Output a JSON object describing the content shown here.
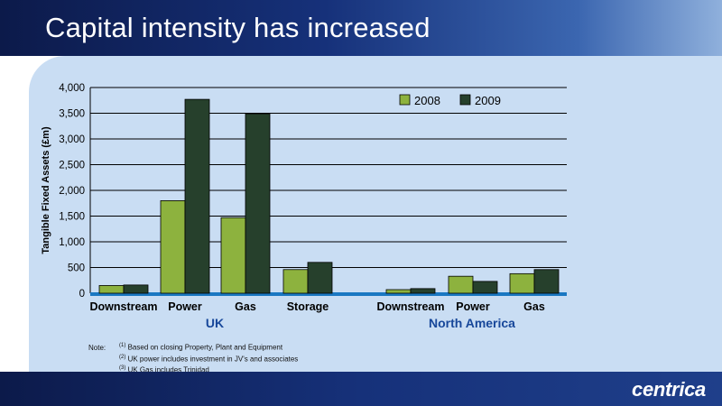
{
  "title": "Capital intensity has increased",
  "logo": "centrica",
  "notes": {
    "label": "Note:",
    "items": [
      {
        "mark": "(1)",
        "text": "Based on closing Property, Plant and Equipment"
      },
      {
        "mark": "(2)",
        "text": "UK power includes investment in JV's and associates"
      },
      {
        "mark": "(3)",
        "text": "UK Gas includes Trinidad"
      }
    ]
  },
  "chart_data": {
    "type": "bar",
    "ylabel": "Tangible Fixed Assets (£m)",
    "ylim": [
      0,
      4000
    ],
    "yticks": [
      "0",
      "500",
      "1,000",
      "1,500",
      "2,000",
      "2,500",
      "3,000",
      "3,500",
      "4,000"
    ],
    "grid": true,
    "legend_position": "top-right",
    "groups": [
      {
        "name": "UK",
        "categories": [
          "Downstream",
          "Power",
          "Gas",
          "Storage"
        ]
      },
      {
        "name": "North America",
        "categories": [
          "Downstream",
          "Power",
          "Gas"
        ]
      }
    ],
    "series": [
      {
        "name": "2008",
        "color": "#8db23e",
        "values": [
          150,
          1800,
          1470,
          460,
          70,
          330,
          380
        ]
      },
      {
        "name": "2009",
        "color": "#26402c",
        "values": [
          160,
          3770,
          3490,
          600,
          90,
          230,
          460
        ]
      }
    ]
  }
}
